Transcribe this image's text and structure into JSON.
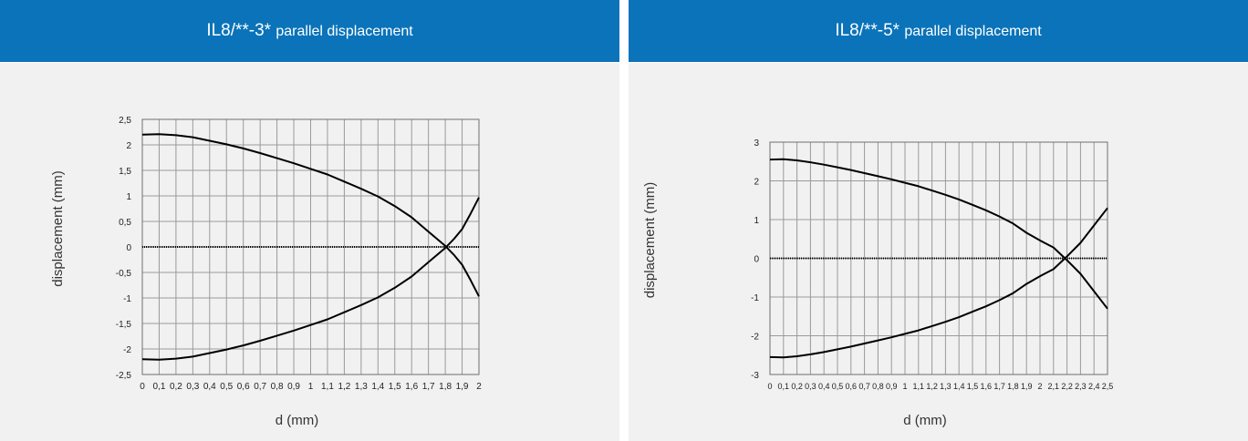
{
  "panels": [
    {
      "title_main": "IL8/**-3*",
      "title_sub": "parallel displacement"
    },
    {
      "title_main": "IL8/**-5*",
      "title_sub": "parallel displacement"
    }
  ],
  "colors": {
    "header_bg": "#0a73b9",
    "plot_bg": "#f1f1f1",
    "curve": "#000000",
    "grid": "#9a9a9a"
  },
  "chart_data": [
    {
      "type": "line",
      "xlabel": "d (mm)",
      "ylabel": "displacement (mm)",
      "xlim": [
        0,
        2
      ],
      "ylim": [
        -2.5,
        2.5
      ],
      "x_ticks": [
        "0",
        "0,1",
        "0,2",
        "0,3",
        "0,4",
        "0,5",
        "0,6",
        "0,7",
        "0,8",
        "0,9",
        "1",
        "1,1",
        "1,2",
        "1,3",
        "1,4",
        "1,5",
        "1,6",
        "1,7",
        "1,8",
        "1,9",
        "2"
      ],
      "y_ticks": [
        "2,5",
        "2",
        "1,5",
        "1",
        "0,5",
        "0",
        "-0,5",
        "-1",
        "-1,5",
        "-2",
        "-2,5"
      ],
      "grid": true,
      "series": [
        {
          "x": [
            0,
            0.1,
            0.2,
            0.3,
            0.4,
            0.5,
            0.6,
            0.7,
            0.8,
            0.9,
            1.0,
            1.1,
            1.2,
            1.3,
            1.4,
            1.5,
            1.6,
            1.7,
            1.8,
            1.85,
            1.9,
            1.95,
            2.0
          ],
          "y": [
            2.2,
            2.21,
            2.19,
            2.15,
            2.08,
            2.01,
            1.93,
            1.84,
            1.74,
            1.64,
            1.53,
            1.42,
            1.28,
            1.14,
            0.99,
            0.8,
            0.58,
            0.3,
            0.02,
            -0.15,
            -0.35,
            -0.65,
            -0.97
          ]
        },
        {
          "x": [
            0,
            0.1,
            0.2,
            0.3,
            0.4,
            0.5,
            0.6,
            0.7,
            0.8,
            0.9,
            1.0,
            1.1,
            1.2,
            1.3,
            1.4,
            1.5,
            1.6,
            1.7,
            1.8,
            1.85,
            1.9,
            1.95,
            2.0
          ],
          "y": [
            -2.2,
            -2.21,
            -2.19,
            -2.15,
            -2.08,
            -2.01,
            -1.93,
            -1.84,
            -1.74,
            -1.64,
            -1.53,
            -1.42,
            -1.28,
            -1.14,
            -0.99,
            -0.8,
            -0.58,
            -0.3,
            -0.02,
            0.15,
            0.35,
            0.65,
            0.97
          ]
        }
      ]
    },
    {
      "type": "line",
      "xlabel": "d (mm)",
      "ylabel": "displacement (mm)",
      "xlim": [
        0,
        2.5
      ],
      "ylim": [
        -3,
        3
      ],
      "x_ticks": [
        "0",
        "0,1",
        "0,2",
        "0,3",
        "0,4",
        "0,5",
        "0,6",
        "0,7",
        "0,8",
        "0,9",
        "1",
        "1,1",
        "1,2",
        "1,3",
        "1,4",
        "1,5",
        "1,6",
        "1,7",
        "1,8",
        "1,9",
        "2",
        "2,1",
        "2,2",
        "2,3",
        "2,4",
        "2,5"
      ],
      "y_ticks": [
        "3",
        "2",
        "1",
        "0",
        "-1",
        "-2",
        "-3"
      ],
      "grid": true,
      "series": [
        {
          "x": [
            0,
            0.1,
            0.2,
            0.3,
            0.4,
            0.5,
            0.6,
            0.7,
            0.8,
            0.9,
            1.0,
            1.1,
            1.2,
            1.3,
            1.4,
            1.5,
            1.6,
            1.7,
            1.8,
            1.9,
            2.0,
            2.1,
            2.2,
            2.3,
            2.4,
            2.5
          ],
          "y": [
            2.55,
            2.56,
            2.53,
            2.48,
            2.42,
            2.35,
            2.28,
            2.2,
            2.12,
            2.04,
            1.95,
            1.86,
            1.75,
            1.64,
            1.52,
            1.38,
            1.24,
            1.08,
            0.9,
            0.66,
            0.46,
            0.28,
            -0.05,
            -0.4,
            -0.85,
            -1.3
          ]
        },
        {
          "x": [
            0,
            0.1,
            0.2,
            0.3,
            0.4,
            0.5,
            0.6,
            0.7,
            0.8,
            0.9,
            1.0,
            1.1,
            1.2,
            1.3,
            1.4,
            1.5,
            1.6,
            1.7,
            1.8,
            1.9,
            2.0,
            2.1,
            2.2,
            2.3,
            2.4,
            2.5
          ],
          "y": [
            -2.55,
            -2.56,
            -2.53,
            -2.48,
            -2.42,
            -2.35,
            -2.28,
            -2.2,
            -2.12,
            -2.04,
            -1.95,
            -1.86,
            -1.75,
            -1.64,
            -1.52,
            -1.38,
            -1.24,
            -1.08,
            -0.9,
            -0.66,
            -0.46,
            -0.28,
            0.05,
            0.4,
            0.85,
            1.3
          ]
        }
      ]
    }
  ]
}
